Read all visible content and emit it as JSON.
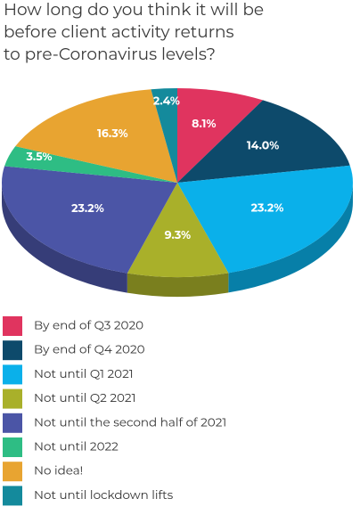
{
  "chart_data": {
    "type": "pie3d",
    "title": [
      "How long do you think it will be",
      "before client activity returns",
      "to pre-Coronavirus levels?"
    ],
    "categories": [
      "By end of Q3 2020",
      "By end of Q4 2020",
      "Not until Q1 2021",
      "Not until Q2 2021",
      "Not until the second half of 2021",
      "Not until 2022",
      "No idea!",
      "Not until lockdown lifts"
    ],
    "values": [
      8.1,
      14.0,
      23.2,
      9.3,
      23.2,
      3.5,
      16.3,
      2.4
    ],
    "value_labels": [
      "8.1%",
      "14.0%",
      "23.2%",
      "9.3%",
      "23.2%",
      "3.5%",
      "16.3%",
      "2.4%"
    ],
    "colors": [
      "#e0345f",
      "#0d4a6b",
      "#0ab0ea",
      "#a9b02a",
      "#4b55a6",
      "#2ebd84",
      "#e8a431",
      "#148a9c"
    ]
  }
}
